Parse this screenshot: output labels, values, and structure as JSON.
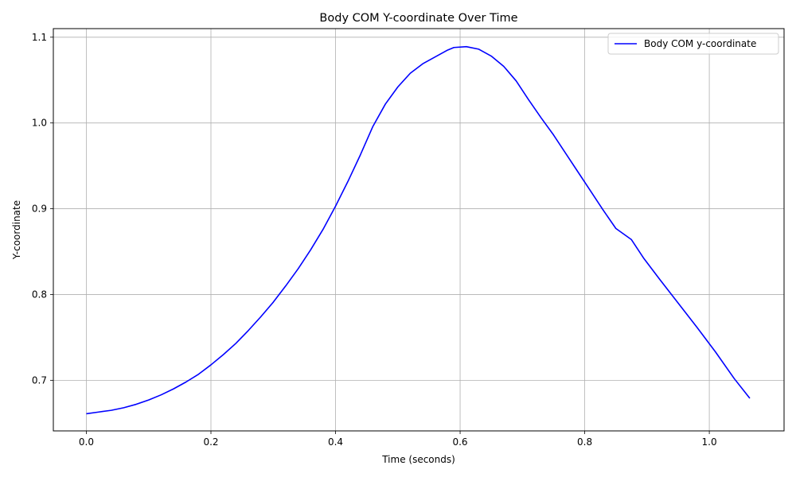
{
  "chart_data": {
    "type": "line",
    "title": "Body COM Y-coordinate Over Time",
    "xlabel": "Time (seconds)",
    "ylabel": "Y-coordinate",
    "xlim": [
      -0.053,
      1.12
    ],
    "ylim": [
      0.641,
      1.11
    ],
    "xticks": [
      0.0,
      0.2,
      0.4,
      0.6,
      0.8,
      1.0
    ],
    "xtick_labels": [
      "0.0",
      "0.2",
      "0.4",
      "0.6",
      "0.8",
      "1.0"
    ],
    "yticks": [
      0.7,
      0.8,
      0.9,
      1.0,
      1.1
    ],
    "ytick_labels": [
      "0.7",
      "0.8",
      "0.9",
      "1.0",
      "1.1"
    ],
    "grid": true,
    "legend_position": "top-right",
    "series": [
      {
        "name": "Body COM y-coordinate",
        "color": "#0000ff",
        "x": [
          0.0,
          0.02,
          0.04,
          0.06,
          0.08,
          0.1,
          0.12,
          0.14,
          0.16,
          0.18,
          0.2,
          0.22,
          0.24,
          0.26,
          0.28,
          0.3,
          0.32,
          0.34,
          0.36,
          0.38,
          0.4,
          0.42,
          0.44,
          0.46,
          0.48,
          0.5,
          0.52,
          0.54,
          0.56,
          0.58,
          0.59,
          0.61,
          0.63,
          0.65,
          0.67,
          0.69,
          0.71,
          0.73,
          0.75,
          0.77,
          0.79,
          0.81,
          0.83,
          0.85,
          0.875,
          0.895,
          0.92,
          0.95,
          0.98,
          1.01,
          1.04,
          1.065
        ],
        "values": [
          0.661,
          0.663,
          0.665,
          0.668,
          0.672,
          0.677,
          0.683,
          0.69,
          0.698,
          0.707,
          0.718,
          0.73,
          0.743,
          0.758,
          0.774,
          0.791,
          0.81,
          0.83,
          0.852,
          0.876,
          0.903,
          0.932,
          0.963,
          0.996,
          1.022,
          1.042,
          1.058,
          1.069,
          1.077,
          1.085,
          1.088,
          1.089,
          1.086,
          1.078,
          1.066,
          1.049,
          1.027,
          1.006,
          0.986,
          0.964,
          0.942,
          0.92,
          0.898,
          0.877,
          0.864,
          0.842,
          0.818,
          0.79,
          0.762,
          0.733,
          0.702,
          0.679
        ]
      }
    ]
  }
}
